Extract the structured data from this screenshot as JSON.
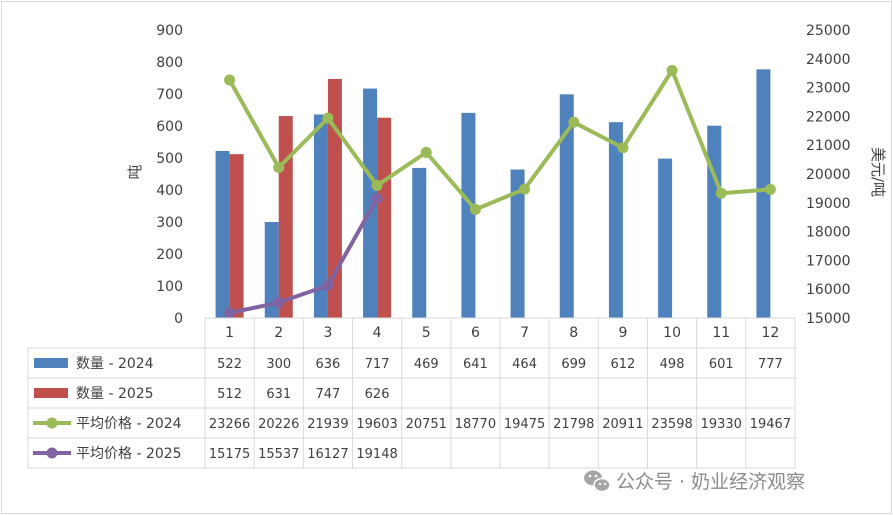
{
  "chart_data": {
    "type": "bar",
    "categories": [
      "1",
      "2",
      "3",
      "4",
      "5",
      "6",
      "7",
      "8",
      "9",
      "10",
      "11",
      "12"
    ],
    "ylabel": "吨",
    "y2label": "美元/吨",
    "ylim": [
      0,
      900
    ],
    "y2lim": [
      15000,
      25000
    ],
    "yticks": [
      "0",
      "100",
      "200",
      "300",
      "400",
      "500",
      "600",
      "700",
      "800",
      "900"
    ],
    "y2ticks": [
      "15000",
      "16000",
      "17000",
      "18000",
      "19000",
      "20000",
      "21000",
      "22000",
      "23000",
      "24000",
      "25000"
    ],
    "series": [
      {
        "name": "数量 - 2024",
        "kind": "bar",
        "axis": "left",
        "color": "#4f81bd",
        "values": [
          522,
          300,
          636,
          717,
          469,
          641,
          464,
          699,
          612,
          498,
          601,
          777
        ]
      },
      {
        "name": "数量 - 2025",
        "kind": "bar",
        "axis": "left",
        "color": "#c0504d",
        "values": [
          512,
          631,
          747,
          626,
          null,
          null,
          null,
          null,
          null,
          null,
          null,
          null
        ]
      },
      {
        "name": "平均价格 - 2024",
        "kind": "line",
        "axis": "right",
        "color": "#9bbb59",
        "values": [
          23266,
          20226,
          21939,
          19603,
          20751,
          18770,
          19475,
          21798,
          20911,
          23598,
          19330,
          19467
        ]
      },
      {
        "name": "平均价格 - 2025",
        "kind": "line",
        "axis": "right",
        "color": "#8064a2",
        "values": [
          15175,
          15537,
          16127,
          19148,
          null,
          null,
          null,
          null,
          null,
          null,
          null,
          null
        ]
      }
    ],
    "grid": false,
    "legend": "data-table"
  },
  "watermark": {
    "text": "公众号 · 奶业经济观察",
    "icon": "wechat-icon"
  }
}
